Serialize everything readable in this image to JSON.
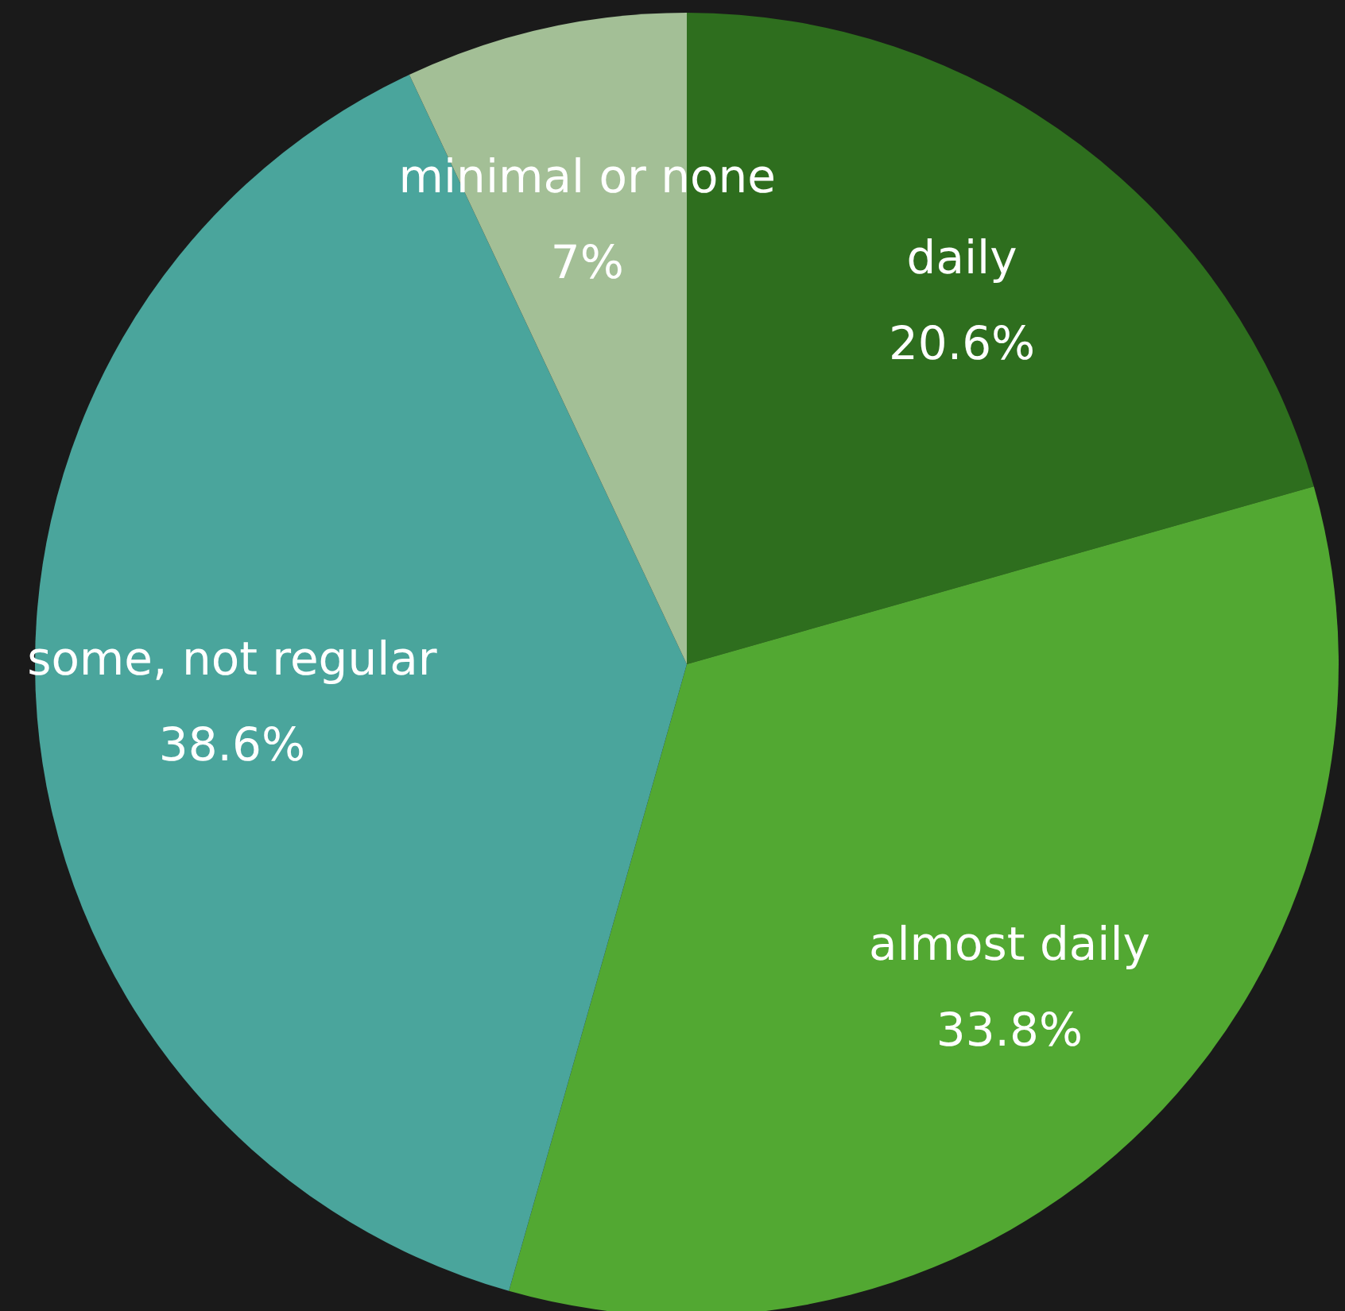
{
  "chart_data": {
    "type": "pie",
    "categories": [
      "daily",
      "almost daily",
      "some, not regular",
      "minimal or none"
    ],
    "values": [
      20.6,
      33.8,
      38.6,
      7
    ],
    "colors": [
      "#2e6e1e",
      "#52a832",
      "#4aa59c",
      "#a3bf96"
    ],
    "value_labels": [
      "20.6%",
      "33.8%",
      "38.6%",
      "7%"
    ],
    "legend": false
  }
}
